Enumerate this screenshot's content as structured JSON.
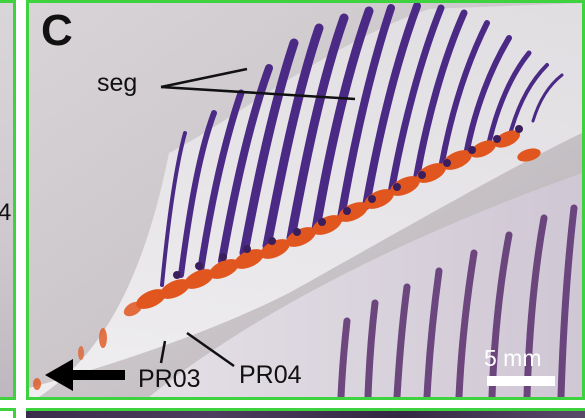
{
  "panel": {
    "letter": "C",
    "labels": {
      "seg": "seg",
      "pr03": "PR03",
      "pr04": "PR04"
    },
    "scale_bar": "5 mm"
  },
  "left_panel": {
    "partial_glyph": "4"
  },
  "colors": {
    "panel_border": "#3fd23f",
    "ray_stain": "#4b2a86",
    "cartilage_stain": "#e0561e",
    "background": "#c9c4c8"
  }
}
